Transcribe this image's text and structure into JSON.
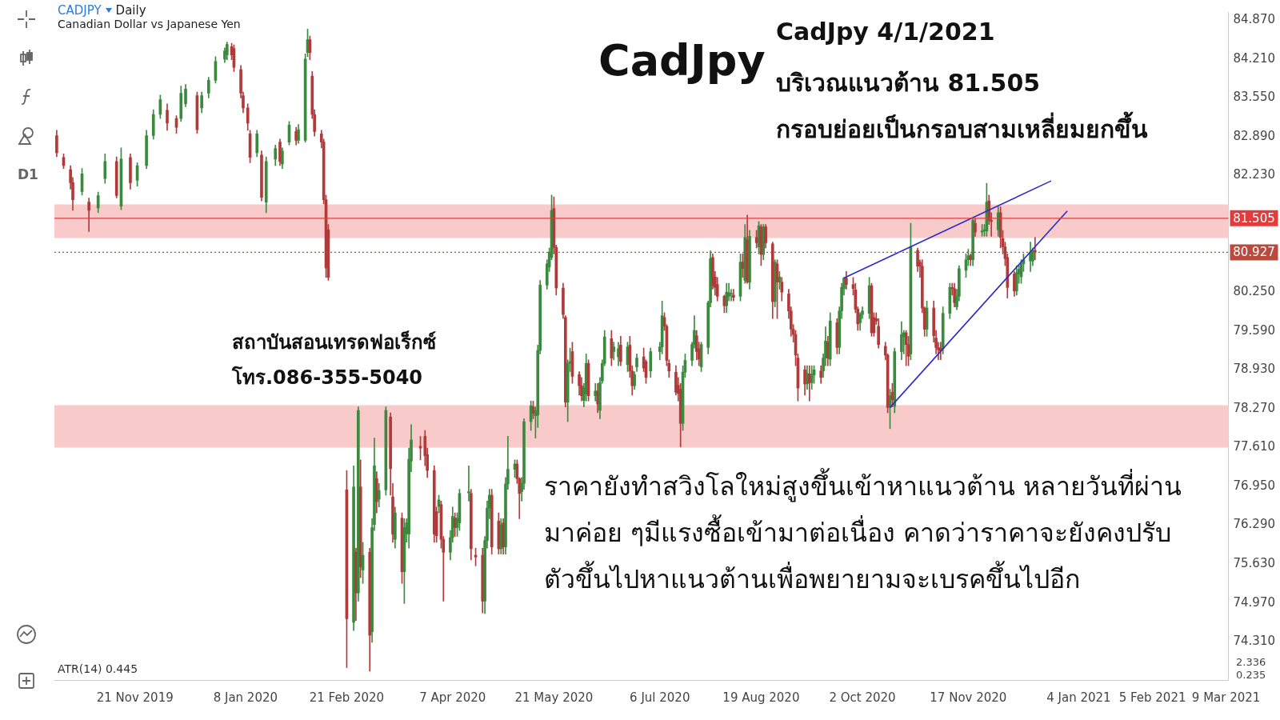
{
  "chart_data": {
    "type": "candlestick",
    "title": "CADJPY",
    "subtitle": "Canadian Dollar vs Japanese Yen",
    "annotations": [
      "Daily",
      "CadJpy",
      "CadJpy 4/1/2021",
      "บริเวณแนวต้าน 81.505",
      "กรอบย่อยเป็นกรอบสามเหลี่ยมยกขึ้น",
      "ราคายังทำสวิงโลใหม่สูงขึ้นเข้าหาแนวต้าน หลายวันที่ผ่าน",
      "มาค่อย ๆมีแรงซื้อเข้ามาต่อเนื่อง คาดว่าราคาจะยังคงปรับ",
      "ตัวขึ้นไปหาแนวต้านเพื่อพยายามจะเบรคขึ้นไปอีก",
      "สถาบันสอนเทรดฟอเร็กซ์",
      "โทร.086-355-5040",
      "D1",
      "ATR(14) 0.445",
      "2.336",
      "0.235"
    ],
    "x": [
      "2019-10-18",
      "2019-10-21",
      "2019-10-24",
      "2019-10-25",
      "2019-10-29",
      "2019-11-01",
      "2019-11-05",
      "2019-11-08",
      "2019-11-13",
      "2019-11-15",
      "2019-11-19",
      "2019-11-22",
      "2019-11-26",
      "2019-11-29",
      "2019-12-02",
      "2019-12-05",
      "2019-12-09",
      "2019-12-11",
      "2019-12-13",
      "2019-12-18",
      "2019-12-20",
      "2019-12-23",
      "2019-12-26",
      "2019-12-30",
      "2019-12-31",
      "2020-01-02",
      "2020-01-03",
      "2020-01-06",
      "2020-01-07",
      "2020-01-09",
      "2020-01-10",
      "2020-01-13",
      "2020-01-15",
      "2020-01-17",
      "2020-01-21",
      "2020-01-23",
      "2020-01-24",
      "2020-01-27",
      "2020-01-30",
      "2020-01-31",
      "2020-02-03",
      "2020-02-04",
      "2020-02-05",
      "2020-02-06",
      "2020-02-07",
      "2020-02-10",
      "2020-02-11",
      "2020-02-12",
      "2020-02-13",
      "2020-02-21",
      "2020-02-24",
      "2020-02-25",
      "2020-02-26",
      "2020-02-27",
      "2020-02-28",
      "2020-03-02",
      "2020-03-03",
      "2020-03-04",
      "2020-03-05",
      "2020-03-06",
      "2020-03-09",
      "2020-03-11",
      "2020-03-12",
      "2020-03-13",
      "2020-03-16",
      "2020-03-17",
      "2020-03-18",
      "2020-03-19",
      "2020-03-20",
      "2020-03-24",
      "2020-03-26",
      "2020-03-27",
      "2020-03-30",
      "2020-03-31",
      "2020-04-01",
      "2020-04-02",
      "2020-04-03",
      "2020-04-06",
      "2020-04-07",
      "2020-04-08",
      "2020-04-09",
      "2020-04-10",
      "2020-04-14",
      "2020-04-15",
      "2020-04-17",
      "2020-04-20",
      "2020-04-21",
      "2020-04-22",
      "2020-04-23",
      "2020-04-24",
      "2020-04-27",
      "2020-04-28",
      "2020-04-29",
      "2020-04-30",
      "2020-05-01",
      "2020-05-04",
      "2020-05-05",
      "2020-05-06",
      "2020-05-07",
      "2020-05-08",
      "2020-05-11",
      "2020-05-12",
      "2020-05-13",
      "2020-05-14",
      "2020-05-15",
      "2020-05-18",
      "2020-05-19",
      "2020-05-20",
      "2020-05-21",
      "2020-05-22",
      "2020-05-25",
      "2020-05-26",
      "2020-05-27",
      "2020-05-28",
      "2020-05-29",
      "2020-06-01",
      "2020-06-02",
      "2020-06-03",
      "2020-06-04",
      "2020-06-05",
      "2020-06-08",
      "2020-06-09",
      "2020-06-10",
      "2020-06-11",
      "2020-06-12",
      "2020-06-15",
      "2020-06-16",
      "2020-06-18",
      "2020-06-19",
      "2020-06-22",
      "2020-06-23",
      "2020-06-24",
      "2020-06-25",
      "2020-06-26",
      "2020-06-29",
      "2020-06-30",
      "2020-07-02",
      "2020-07-06",
      "2020-07-07",
      "2020-07-08",
      "2020-07-09",
      "2020-07-10",
      "2020-07-13",
      "2020-07-14",
      "2020-07-15",
      "2020-07-16",
      "2020-07-17",
      "2020-07-20",
      "2020-07-21",
      "2020-07-22",
      "2020-07-23",
      "2020-07-24",
      "2020-07-27",
      "2020-07-28",
      "2020-07-29",
      "2020-07-30",
      "2020-07-31",
      "2020-08-03",
      "2020-08-04",
      "2020-08-05",
      "2020-08-06",
      "2020-08-07",
      "2020-08-10",
      "2020-08-11",
      "2020-08-12",
      "2020-08-13",
      "2020-08-14",
      "2020-08-17",
      "2020-08-18",
      "2020-08-19",
      "2020-08-20",
      "2020-08-21",
      "2020-08-24",
      "2020-08-25",
      "2020-08-26",
      "2020-08-27",
      "2020-08-28",
      "2020-08-31",
      "2020-09-01",
      "2020-09-02",
      "2020-09-03",
      "2020-09-04",
      "2020-09-07",
      "2020-09-08",
      "2020-09-09",
      "2020-09-10",
      "2020-09-11",
      "2020-09-14",
      "2020-09-15",
      "2020-09-16",
      "2020-09-17",
      "2020-09-18",
      "2020-09-21",
      "2020-09-22",
      "2020-09-23",
      "2020-09-24",
      "2020-09-25",
      "2020-09-28",
      "2020-09-29",
      "2020-09-30",
      "2020-10-01",
      "2020-10-02",
      "2020-10-05",
      "2020-10-06",
      "2020-10-07",
      "2020-10-08",
      "2020-10-09",
      "2020-10-12",
      "2020-10-13",
      "2020-10-14",
      "2020-10-15",
      "2020-10-16",
      "2020-10-19",
      "2020-10-20",
      "2020-10-21",
      "2020-10-22",
      "2020-10-23",
      "2020-10-26",
      "2020-10-27",
      "2020-10-28",
      "2020-10-29",
      "2020-10-30",
      "2020-11-02",
      "2020-11-03",
      "2020-11-04",
      "2020-11-05",
      "2020-11-06",
      "2020-11-09",
      "2020-11-10",
      "2020-11-11",
      "2020-11-12",
      "2020-11-13",
      "2020-11-16",
      "2020-11-17",
      "2020-11-18",
      "2020-11-19",
      "2020-11-20",
      "2020-11-23",
      "2020-11-24",
      "2020-11-25",
      "2020-11-26",
      "2020-11-27",
      "2020-11-30",
      "2020-12-01",
      "2020-12-02",
      "2020-12-03",
      "2020-12-04",
      "2020-12-07",
      "2020-12-08",
      "2020-12-09",
      "2020-12-10",
      "2020-12-11",
      "2020-12-14",
      "2020-12-15",
      "2020-12-16"
    ],
    "ohlc": [
      [
        82.91,
        83.0,
        82.55,
        82.62
      ],
      [
        82.54,
        82.6,
        82.35,
        82.4
      ],
      [
        82.33,
        82.4,
        82.0,
        82.11
      ],
      [
        82.11,
        82.2,
        81.64,
        81.82
      ],
      [
        81.96,
        82.35,
        81.9,
        82.26
      ],
      [
        81.78,
        81.85,
        81.28,
        81.64
      ],
      [
        81.68,
        81.95,
        81.6,
        81.89
      ],
      [
        82.18,
        82.6,
        82.1,
        82.47
      ],
      [
        82.47,
        82.55,
        81.85,
        81.89
      ],
      [
        81.71,
        82.7,
        81.65,
        82.51
      ],
      [
        82.54,
        82.6,
        82.0,
        82.11
      ],
      [
        82.15,
        82.45,
        82.05,
        82.4
      ],
      [
        82.4,
        83.0,
        82.35,
        82.91
      ],
      [
        82.91,
        83.35,
        82.85,
        83.27
      ],
      [
        83.27,
        83.6,
        83.2,
        83.52
      ],
      [
        83.34,
        83.45,
        83.0,
        83.12
      ],
      [
        83.2,
        83.25,
        82.95,
        83.05
      ],
      [
        83.2,
        83.75,
        83.15,
        83.63
      ],
      [
        83.45,
        83.78,
        83.4,
        83.7
      ],
      [
        83.59,
        83.65,
        82.95,
        83.01
      ],
      [
        83.38,
        83.65,
        83.3,
        83.59
      ],
      [
        83.63,
        83.9,
        83.55,
        83.85
      ],
      [
        83.85,
        84.25,
        83.8,
        84.17
      ],
      [
        84.21,
        84.4,
        84.15,
        84.35
      ],
      [
        84.28,
        84.5,
        84.2,
        84.46
      ],
      [
        84.42,
        84.48,
        84.2,
        84.28
      ],
      [
        84.39,
        84.45,
        84.0,
        84.07
      ],
      [
        84.03,
        84.1,
        83.55,
        83.63
      ],
      [
        83.59,
        83.65,
        83.3,
        83.38
      ],
      [
        83.38,
        83.45,
        83.0,
        83.12
      ],
      [
        82.94,
        83.0,
        82.45,
        82.54
      ],
      [
        82.62,
        83.0,
        82.55,
        82.94
      ],
      [
        82.58,
        82.65,
        81.8,
        81.86
      ],
      [
        81.78,
        82.55,
        81.6,
        82.47
      ],
      [
        82.51,
        82.75,
        82.4,
        82.69
      ],
      [
        82.8,
        82.85,
        82.4,
        82.47
      ],
      [
        82.43,
        82.7,
        82.35,
        82.65
      ],
      [
        82.8,
        83.15,
        82.75,
        83.09
      ],
      [
        82.98,
        83.05,
        82.75,
        82.83
      ],
      [
        82.83,
        83.1,
        82.78,
        83.01
      ],
      [
        82.83,
        84.3,
        82.8,
        84.21
      ],
      [
        84.32,
        84.72,
        84.25,
        84.54
      ],
      [
        84.54,
        84.6,
        84.2,
        84.32
      ],
      [
        83.92,
        84.0,
        83.2,
        83.27
      ],
      [
        83.27,
        83.35,
        82.9,
        82.98
      ],
      [
        82.94,
        83.0,
        82.7,
        82.8
      ],
      [
        82.8,
        82.85,
        81.75,
        81.82
      ],
      [
        81.82,
        81.9,
        80.5,
        80.66
      ],
      [
        81.31,
        81.4,
        80.45,
        80.5
      ],
      [
        76.89,
        77.22,
        73.87,
        74.7
      ],
      [
        74.64,
        77.3,
        74.5,
        76.94
      ],
      [
        75.83,
        75.9,
        74.67,
        75.14
      ],
      [
        75.14,
        78.3,
        75.0,
        78.24
      ],
      [
        76.94,
        77.4,
        75.4,
        75.58
      ],
      [
        75.53,
        76.0,
        75.3,
        75.78
      ],
      [
        75.83,
        75.9,
        73.81,
        74.42
      ],
      [
        74.48,
        76.4,
        74.3,
        76.25
      ],
      [
        76.3,
        77.77,
        76.2,
        77.3
      ],
      [
        77.08,
        77.2,
        76.5,
        76.69
      ],
      [
        76.73,
        77.0,
        76.6,
        76.88
      ],
      [
        76.89,
        78.3,
        76.8,
        78.24
      ],
      [
        78.13,
        78.2,
        76.8,
        77.25
      ],
      [
        76.77,
        77.0,
        76.0,
        76.14
      ],
      [
        76.05,
        76.6,
        75.9,
        76.5
      ],
      [
        76.41,
        76.5,
        75.3,
        75.5
      ],
      [
        75.5,
        76.4,
        74.96,
        76.25
      ],
      [
        76.14,
        76.4,
        76.0,
        76.33
      ],
      [
        76.14,
        77.6,
        75.9,
        77.41
      ],
      [
        77.38,
        78.0,
        77.2,
        77.74
      ],
      [
        77.63,
        77.8,
        77.4,
        77.6
      ],
      [
        77.8,
        77.9,
        77.3,
        77.47
      ],
      [
        77.49,
        77.6,
        77.1,
        77.22
      ],
      [
        77.22,
        77.3,
        76.0,
        76.14
      ],
      [
        76.52,
        76.6,
        76.0,
        76.11
      ],
      [
        76.61,
        76.8,
        76.5,
        76.72
      ],
      [
        76.64,
        76.7,
        75.9,
        76.05
      ],
      [
        76.05,
        76.1,
        75.0,
        75.83
      ],
      [
        75.83,
        76.2,
        75.7,
        76.08
      ],
      [
        76.08,
        76.6,
        76.0,
        76.44
      ],
      [
        76.41,
        76.5,
        76.1,
        76.25
      ],
      [
        76.25,
        76.5,
        76.1,
        76.41
      ],
      [
        76.33,
        76.9,
        76.2,
        76.83
      ],
      [
        76.84,
        77.3,
        76.7,
        76.86
      ],
      [
        76.83,
        76.9,
        75.7,
        75.89
      ],
      [
        75.78,
        75.9,
        75.6,
        75.75
      ],
      [
        75.78,
        75.9,
        74.8,
        75.0
      ],
      [
        75.0,
        76.1,
        74.79,
        76.03
      ],
      [
        76.03,
        76.7,
        75.9,
        76.58
      ],
      [
        76.58,
        76.9,
        76.4,
        76.8
      ],
      [
        76.8,
        76.9,
        75.8,
        75.92
      ],
      [
        76.36,
        76.5,
        75.8,
        75.89
      ],
      [
        75.89,
        76.4,
        75.8,
        76.3
      ],
      [
        76.33,
        76.4,
        75.8,
        75.92
      ],
      [
        75.92,
        77.1,
        75.8,
        76.99
      ],
      [
        76.99,
        77.8,
        76.9,
        77.24
      ],
      [
        77.24,
        77.4,
        77.1,
        77.33
      ],
      [
        77.33,
        77.4,
        77.0,
        77.08
      ],
      [
        77.08,
        77.1,
        76.4,
        76.83
      ],
      [
        76.86,
        77.1,
        76.7,
        77.0
      ],
      [
        77.0,
        78.1,
        76.9,
        78.05
      ],
      [
        78.05,
        78.4,
        77.9,
        78.32
      ],
      [
        78.3,
        78.4,
        78.1,
        78.19
      ],
      [
        78.15,
        78.3,
        77.77,
        78.24
      ],
      [
        78.16,
        79.35,
        77.95,
        79.26
      ],
      [
        79.26,
        80.45,
        79.2,
        80.37
      ],
      [
        80.37,
        80.8,
        80.3,
        80.73
      ],
      [
        80.68,
        81.0,
        80.6,
        80.93
      ],
      [
        80.84,
        81.9,
        80.8,
        81.64
      ],
      [
        81.67,
        81.87,
        80.9,
        81.01
      ],
      [
        81.01,
        81.05,
        80.2,
        80.32
      ],
      [
        80.32,
        80.4,
        79.8,
        79.87
      ],
      [
        79.82,
        79.85,
        78.3,
        78.38
      ],
      [
        78.38,
        79.1,
        78.05,
        79.04
      ],
      [
        79.04,
        79.3,
        78.9,
        79.07
      ],
      [
        79.24,
        79.4,
        78.7,
        78.82
      ],
      [
        78.85,
        78.9,
        78.5,
        78.66
      ],
      [
        78.66,
        78.8,
        78.4,
        78.49
      ],
      [
        78.41,
        78.7,
        78.3,
        78.63
      ],
      [
        78.52,
        79.2,
        78.4,
        79.04
      ],
      [
        79.04,
        79.1,
        78.4,
        78.49
      ],
      [
        78.49,
        78.7,
        78.4,
        78.57
      ],
      [
        78.57,
        78.7,
        78.2,
        78.35
      ],
      [
        78.24,
        78.8,
        78.1,
        78.71
      ],
      [
        78.74,
        79.1,
        78.7,
        79.04
      ],
      [
        79.04,
        79.6,
        79.0,
        79.49
      ],
      [
        79.46,
        79.6,
        79.0,
        79.13
      ],
      [
        79.24,
        79.4,
        79.1,
        79.32
      ],
      [
        79.15,
        79.4,
        79.0,
        79.29
      ],
      [
        79.35,
        79.5,
        79.0,
        79.07
      ],
      [
        79.02,
        79.4,
        78.9,
        79.32
      ],
      [
        79.35,
        79.5,
        78.8,
        78.91
      ],
      [
        78.91,
        79.0,
        78.5,
        78.66
      ],
      [
        78.66,
        78.9,
        78.6,
        78.85
      ],
      [
        78.98,
        79.2,
        78.9,
        79.13
      ],
      [
        79.15,
        79.3,
        78.9,
        78.96
      ],
      [
        79.07,
        79.1,
        78.7,
        78.8
      ],
      [
        78.91,
        79.3,
        78.8,
        79.24
      ],
      [
        79.24,
        79.4,
        79.1,
        79.32
      ],
      [
        79.32,
        80.1,
        79.2,
        79.85
      ],
      [
        79.82,
        79.9,
        79.6,
        79.67
      ],
      [
        79.67,
        79.7,
        79.0,
        79.09
      ],
      [
        79.04,
        79.1,
        78.8,
        78.91
      ],
      [
        78.89,
        79.0,
        78.5,
        78.55
      ],
      [
        78.67,
        78.8,
        78.4,
        78.53
      ],
      [
        78.6,
        78.7,
        77.62,
        78.02
      ],
      [
        78.02,
        79.0,
        77.9,
        78.89
      ],
      [
        78.89,
        79.2,
        78.8,
        79.09
      ],
      [
        79.09,
        79.4,
        79.0,
        79.36
      ],
      [
        79.36,
        79.85,
        79.3,
        79.6
      ],
      [
        79.51,
        79.6,
        79.1,
        79.24
      ],
      [
        79.29,
        79.4,
        79.0,
        79.11
      ],
      [
        78.98,
        79.4,
        78.9,
        79.36
      ],
      [
        79.31,
        80.1,
        79.2,
        80.07
      ],
      [
        80.07,
        80.95,
        80.0,
        80.82
      ],
      [
        80.84,
        80.9,
        80.3,
        80.36
      ],
      [
        80.51,
        80.6,
        80.2,
        80.33
      ],
      [
        80.38,
        80.5,
        80.1,
        80.18
      ],
      [
        80.18,
        80.2,
        79.9,
        80.02
      ],
      [
        80.02,
        80.4,
        79.9,
        80.25
      ],
      [
        80.18,
        80.4,
        80.1,
        80.24
      ],
      [
        80.22,
        80.3,
        80.1,
        80.23
      ],
      [
        80.2,
        80.3,
        80.1,
        80.16
      ],
      [
        80.18,
        80.9,
        80.1,
        80.76
      ],
      [
        80.76,
        80.9,
        80.5,
        80.65
      ],
      [
        80.45,
        81.4,
        80.4,
        81.18
      ],
      [
        81.14,
        81.56,
        80.4,
        80.42
      ],
      [
        80.42,
        81.3,
        80.3,
        81.2
      ],
      [
        81.18,
        81.3,
        81.0,
        81.09
      ],
      [
        81.02,
        81.45,
        80.9,
        81.38
      ],
      [
        81.36,
        81.4,
        80.7,
        80.89
      ],
      [
        80.89,
        81.4,
        80.8,
        81.36
      ],
      [
        81.36,
        81.4,
        81.0,
        81.09
      ],
      [
        81.07,
        81.1,
        79.8,
        80.09
      ],
      [
        80.09,
        80.8,
        80.0,
        80.76
      ],
      [
        80.73,
        80.8,
        79.8,
        80.42
      ],
      [
        80.42,
        80.6,
        80.3,
        80.51
      ],
      [
        80.42,
        80.5,
        80.1,
        80.25
      ],
      [
        80.22,
        80.3,
        79.8,
        79.93
      ],
      [
        79.93,
        80.0,
        79.5,
        79.62
      ],
      [
        79.62,
        79.7,
        79.4,
        79.53
      ],
      [
        79.53,
        79.6,
        79.0,
        79.18
      ],
      [
        79.13,
        79.2,
        78.4,
        78.62
      ],
      [
        78.93,
        79.0,
        78.5,
        78.69
      ],
      [
        78.69,
        79.0,
        78.6,
        78.87
      ],
      [
        78.86,
        79.0,
        78.4,
        78.71
      ],
      [
        78.71,
        79.0,
        78.6,
        78.86
      ],
      [
        78.84,
        79.0,
        78.7,
        78.93
      ],
      [
        78.91,
        79.0,
        78.7,
        78.8
      ],
      [
        78.91,
        79.2,
        78.8,
        79.13
      ],
      [
        79.13,
        79.66,
        79.0,
        79.42
      ],
      [
        79.4,
        79.5,
        79.0,
        79.13
      ],
      [
        79.11,
        79.9,
        79.0,
        79.76
      ],
      [
        79.73,
        79.8,
        79.2,
        79.31
      ],
      [
        79.31,
        80.0,
        79.2,
        79.93
      ],
      [
        79.93,
        80.4,
        79.8,
        80.33
      ],
      [
        80.31,
        80.5,
        80.2,
        80.49
      ],
      [
        80.49,
        80.6,
        80.3,
        80.38
      ],
      [
        80.38,
        80.5,
        80.2,
        80.31
      ],
      [
        80.29,
        80.4,
        79.9,
        79.96
      ],
      [
        79.96,
        80.0,
        79.6,
        79.71
      ],
      [
        79.73,
        79.9,
        79.6,
        79.87
      ],
      [
        79.87,
        80.0,
        79.8,
        79.93
      ],
      [
        79.89,
        80.5,
        79.8,
        80.36
      ],
      [
        80.36,
        80.4,
        79.5,
        79.56
      ],
      [
        79.82,
        79.9,
        79.5,
        79.56
      ],
      [
        79.8,
        79.9,
        79.7,
        79.76
      ],
      [
        79.67,
        79.8,
        79.3,
        79.36
      ],
      [
        79.33,
        79.4,
        79.1,
        79.18
      ],
      [
        79.18,
        79.2,
        78.2,
        78.29
      ],
      [
        78.29,
        78.6,
        77.93,
        78.49
      ],
      [
        78.55,
        78.7,
        78.3,
        78.42
      ],
      [
        78.31,
        79.3,
        78.2,
        79.24
      ],
      [
        79.24,
        79.75,
        79.1,
        79.53
      ],
      [
        79.49,
        79.6,
        79.2,
        79.56
      ],
      [
        79.56,
        79.6,
        79.0,
        79.36
      ],
      [
        79.36,
        79.5,
        79.0,
        79.16
      ],
      [
        79.2,
        81.42,
        79.1,
        81.02
      ],
      [
        80.96,
        81.0,
        80.6,
        80.69
      ],
      [
        80.76,
        80.8,
        80.5,
        80.69
      ],
      [
        80.69,
        80.8,
        79.9,
        79.98
      ],
      [
        79.98,
        80.0,
        79.5,
        79.62
      ],
      [
        79.62,
        80.1,
        79.5,
        79.98
      ],
      [
        79.98,
        80.1,
        79.4,
        79.51
      ],
      [
        79.47,
        79.6,
        79.2,
        79.31
      ],
      [
        79.31,
        79.4,
        79.1,
        79.27
      ],
      [
        79.3,
        79.4,
        79.1,
        79.25
      ],
      [
        79.29,
        80.0,
        79.2,
        79.89
      ],
      [
        79.89,
        80.4,
        79.8,
        80.33
      ],
      [
        80.33,
        80.4,
        80.2,
        80.31
      ],
      [
        80.31,
        80.4,
        80.0,
        80.07
      ],
      [
        80.0,
        80.3,
        79.95,
        80.18
      ],
      [
        80.18,
        80.7,
        80.1,
        80.65
      ],
      [
        80.62,
        80.9,
        80.5,
        80.8
      ],
      [
        80.8,
        80.98,
        80.7,
        80.87
      ],
      [
        80.87,
        80.9,
        80.7,
        80.8
      ],
      [
        80.8,
        81.5,
        80.7,
        81.47
      ],
      [
        81.42,
        81.5,
        81.2,
        81.27
      ],
      [
        81.27,
        81.4,
        81.2,
        81.29
      ],
      [
        81.29,
        81.4,
        81.2,
        81.31
      ],
      [
        81.29,
        82.1,
        81.2,
        81.78
      ],
      [
        81.8,
        81.9,
        81.4,
        81.47
      ],
      [
        81.47,
        81.6,
        81.2,
        81.45
      ],
      [
        81.31,
        81.7,
        81.2,
        81.6
      ],
      [
        81.6,
        81.7,
        81.0,
        81.18
      ],
      [
        81.16,
        81.3,
        80.9,
        81.02
      ],
      [
        81.02,
        81.1,
        80.7,
        80.82
      ],
      [
        80.84,
        80.9,
        80.15,
        80.33
      ],
      [
        80.56,
        80.6,
        80.18,
        80.27
      ],
      [
        80.27,
        80.7,
        80.2,
        80.58
      ],
      [
        80.56,
        80.7,
        80.4,
        80.64
      ],
      [
        80.51,
        80.8,
        80.4,
        80.73
      ],
      [
        80.73,
        80.9,
        80.6,
        80.8
      ],
      [
        80.78,
        81.1,
        80.6,
        80.93
      ],
      [
        80.78,
        81.0,
        80.7,
        80.96
      ],
      [
        80.96,
        81.18,
        80.8,
        80.927
      ]
    ],
    "series": [
      {
        "type": "line",
        "color": "#2b2bc8",
        "x": [
          "2020-09-24",
          "2020-12-23"
        ],
        "values": [
          80.49,
          82.14
        ]
      },
      {
        "type": "line",
        "color": "#2b2bc8",
        "x": [
          "2020-10-14",
          "2020-12-30"
        ],
        "values": [
          78.29,
          81.63
        ]
      }
    ],
    "xlim": [
      "2019-10-17",
      "2021-03-10"
    ],
    "xticks": [
      {
        "value": "2019-11-21",
        "label": "21 Nov 2019"
      },
      {
        "value": "2020-01-08",
        "label": "8 Jan 2020"
      },
      {
        "value": "2020-02-21",
        "label": "21 Feb 2020"
      },
      {
        "value": "2020-04-07",
        "label": "7 Apr 2020"
      },
      {
        "value": "2020-05-21",
        "label": "21 May 2020"
      },
      {
        "value": "2020-07-06",
        "label": "6 Jul 2020"
      },
      {
        "value": "2020-08-19",
        "label": "19 Aug 2020"
      },
      {
        "value": "2020-10-02",
        "label": "2 Oct 2020"
      },
      {
        "value": "2020-11-17",
        "label": "17 Nov 2020"
      },
      {
        "value": "2021-01-04",
        "label": "4 Jan 2021"
      },
      {
        "value": "2021-02-05",
        "label": "5 Feb 2021"
      },
      {
        "value": "2021-03-09",
        "label": "9 Mar 2021"
      }
    ],
    "ylim": [
      73.66,
      85.01
    ],
    "yticks": [
      {
        "value": 84.87,
        "label": "84.870"
      },
      {
        "value": 84.21,
        "label": "84.210"
      },
      {
        "value": 83.55,
        "label": "83.550"
      },
      {
        "value": 82.89,
        "label": "82.890"
      },
      {
        "value": 82.23,
        "label": "82.230"
      },
      {
        "value": 80.25,
        "label": "80.250"
      },
      {
        "value": 79.59,
        "label": "79.590"
      },
      {
        "value": 78.93,
        "label": "78.930"
      },
      {
        "value": 78.27,
        "label": "78.270"
      },
      {
        "value": 77.61,
        "label": "77.610"
      },
      {
        "value": 76.95,
        "label": "76.950"
      },
      {
        "value": 76.29,
        "label": "76.290"
      },
      {
        "value": 75.63,
        "label": "75.630"
      },
      {
        "value": 74.97,
        "label": "74.970"
      },
      {
        "value": 74.31,
        "label": "74.310"
      }
    ],
    "ref_lines": [
      {
        "axis": "y",
        "value": 81.505,
        "label": "81.505",
        "color": "#e23b3b",
        "line_style": "solid"
      },
      {
        "axis": "y",
        "value": 80.927,
        "label": "80.927",
        "color": "#b84a3e",
        "line_style": "dotted"
      }
    ],
    "bands": [
      {
        "axis": "y",
        "from": 81.17,
        "to": 81.74,
        "color": "#f9caca"
      },
      {
        "axis": "y",
        "from": 77.61,
        "to": 78.33,
        "color": "#f9caca"
      }
    ]
  }
}
